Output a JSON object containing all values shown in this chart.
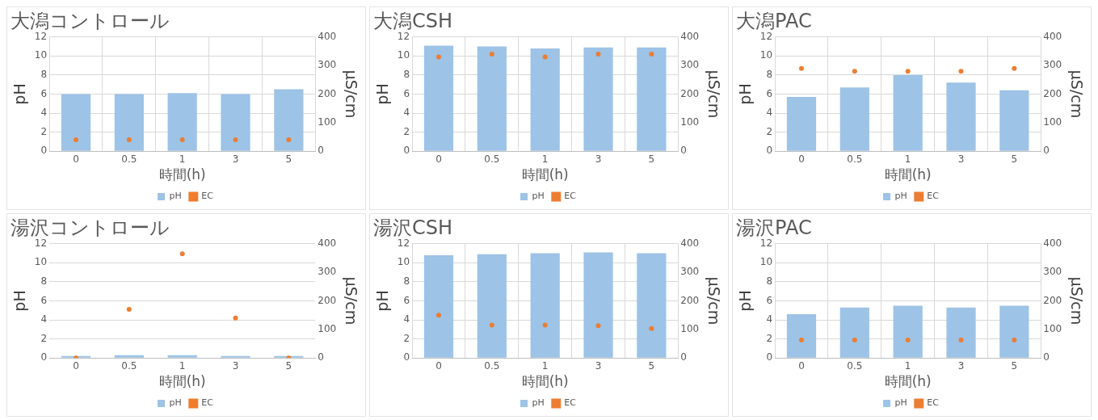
{
  "chart_data": [
    {
      "type": "bar",
      "title": "大潟コントロール",
      "xlabel": "時間(h)",
      "ylabel": "pH",
      "y2label": "µS/cm",
      "categories": [
        "0",
        "0.5",
        "1",
        "3",
        "5"
      ],
      "series": [
        {
          "name": "pH",
          "color": "#9dc3e6",
          "values": [
            6.0,
            6.0,
            6.1,
            6.0,
            6.5
          ]
        },
        {
          "name": "EC",
          "type": "scatter",
          "axis": "y2",
          "color": "#ed7d31",
          "values": [
            40,
            40,
            40,
            40,
            40
          ]
        }
      ],
      "ylim": [
        0,
        12
      ],
      "yticks": [
        0,
        2,
        4,
        6,
        8,
        10,
        12
      ],
      "y2lim": [
        0,
        400
      ],
      "y2ticks": [
        0,
        100,
        200,
        300,
        400
      ],
      "grid": true,
      "legend": "bottom",
      "marker": "circle"
    },
    {
      "type": "bar",
      "title": "大潟CSH",
      "xlabel": "時間(h)",
      "ylabel": "pH",
      "y2label": "µS/cm",
      "categories": [
        "0",
        "0.5",
        "1",
        "3",
        "5"
      ],
      "series": [
        {
          "name": "pH",
          "color": "#9dc3e6",
          "values": [
            11.1,
            11.0,
            10.8,
            10.9,
            10.9
          ]
        },
        {
          "name": "EC",
          "type": "scatter",
          "axis": "y2",
          "color": "#ed7d31",
          "values": [
            330,
            340,
            330,
            340,
            340
          ]
        }
      ],
      "ylim": [
        0,
        12
      ],
      "yticks": [
        0,
        2,
        4,
        6,
        8,
        10,
        12
      ],
      "y2lim": [
        0,
        400
      ],
      "y2ticks": [
        0,
        100,
        200,
        300,
        400
      ],
      "grid": true,
      "legend": "bottom",
      "marker": "circle"
    },
    {
      "type": "bar",
      "title": "大潟PAC",
      "xlabel": "時間(h)",
      "ylabel": "pH",
      "y2label": "µS/cm",
      "categories": [
        "0",
        "0.5",
        "1",
        "3",
        "5"
      ],
      "series": [
        {
          "name": "pH",
          "color": "#9dc3e6",
          "values": [
            5.7,
            6.7,
            8.0,
            7.2,
            6.4
          ]
        },
        {
          "name": "EC",
          "type": "scatter",
          "axis": "y2",
          "color": "#ed7d31",
          "values": [
            290,
            280,
            280,
            280,
            290
          ]
        }
      ],
      "ylim": [
        0,
        12
      ],
      "yticks": [
        0,
        2,
        4,
        6,
        8,
        10,
        12
      ],
      "y2lim": [
        0,
        400
      ],
      "y2ticks": [
        0,
        100,
        200,
        300,
        400
      ],
      "grid": true,
      "legend": "bottom",
      "marker": "circle"
    },
    {
      "type": "bar",
      "title": "湯沢コントロール",
      "xlabel": "時間(h)",
      "ylabel": "pH",
      "y2label": "µS/cm",
      "categories": [
        "0",
        "0.5",
        "1",
        "3",
        "5"
      ],
      "series": [
        {
          "name": "pH",
          "color": "#9dc3e6",
          "values": [
            0.2,
            0.3,
            0.3,
            0.2,
            0.2
          ]
        },
        {
          "name": "EC",
          "type": "scatter",
          "axis": "y2",
          "color": "#ed7d31",
          "values": [
            0,
            170,
            365,
            140,
            0
          ]
        }
      ],
      "ylim": [
        0,
        12
      ],
      "yticks": [
        0,
        2,
        4,
        6,
        8,
        10,
        12
      ],
      "y2lim": [
        0,
        400
      ],
      "y2ticks": [
        0,
        100,
        200,
        300,
        400
      ],
      "grid": "y",
      "legend": "bottom",
      "marker": "circle"
    },
    {
      "type": "bar",
      "title": "湯沢CSH",
      "xlabel": "時間(h)",
      "ylabel": "pH",
      "y2label": "µS/cm",
      "categories": [
        "0",
        "0.5",
        "1",
        "3",
        "5"
      ],
      "series": [
        {
          "name": "pH",
          "color": "#9dc3e6",
          "values": [
            10.8,
            10.9,
            11.0,
            11.1,
            11.0
          ]
        },
        {
          "name": "EC",
          "type": "scatter",
          "axis": "y2",
          "color": "#ed7d31",
          "values": [
            150,
            115,
            115,
            113,
            103
          ]
        }
      ],
      "ylim": [
        0,
        12
      ],
      "yticks": [
        0,
        2,
        4,
        6,
        8,
        10,
        12
      ],
      "y2lim": [
        0,
        400
      ],
      "y2ticks": [
        0,
        100,
        200,
        300,
        400
      ],
      "grid": true,
      "legend": "bottom",
      "marker": "circle"
    },
    {
      "type": "bar",
      "title": "湯沢PAC",
      "xlabel": "時間(h)",
      "ylabel": "pH",
      "y2label": "µS/cm",
      "categories": [
        "0",
        "0.5",
        "1",
        "3",
        "5"
      ],
      "series": [
        {
          "name": "pH",
          "color": "#9dc3e6",
          "values": [
            4.6,
            5.3,
            5.5,
            5.3,
            5.5
          ]
        },
        {
          "name": "EC",
          "type": "scatter",
          "axis": "y2",
          "color": "#ed7d31",
          "values": [
            63,
            63,
            63,
            63,
            63
          ]
        }
      ],
      "ylim": [
        0,
        12
      ],
      "yticks": [
        0,
        2,
        4,
        6,
        8,
        10,
        12
      ],
      "y2lim": [
        0,
        400
      ],
      "y2ticks": [
        0,
        100,
        200,
        300,
        400
      ],
      "grid": true,
      "legend": "bottom",
      "marker": "circle"
    }
  ]
}
